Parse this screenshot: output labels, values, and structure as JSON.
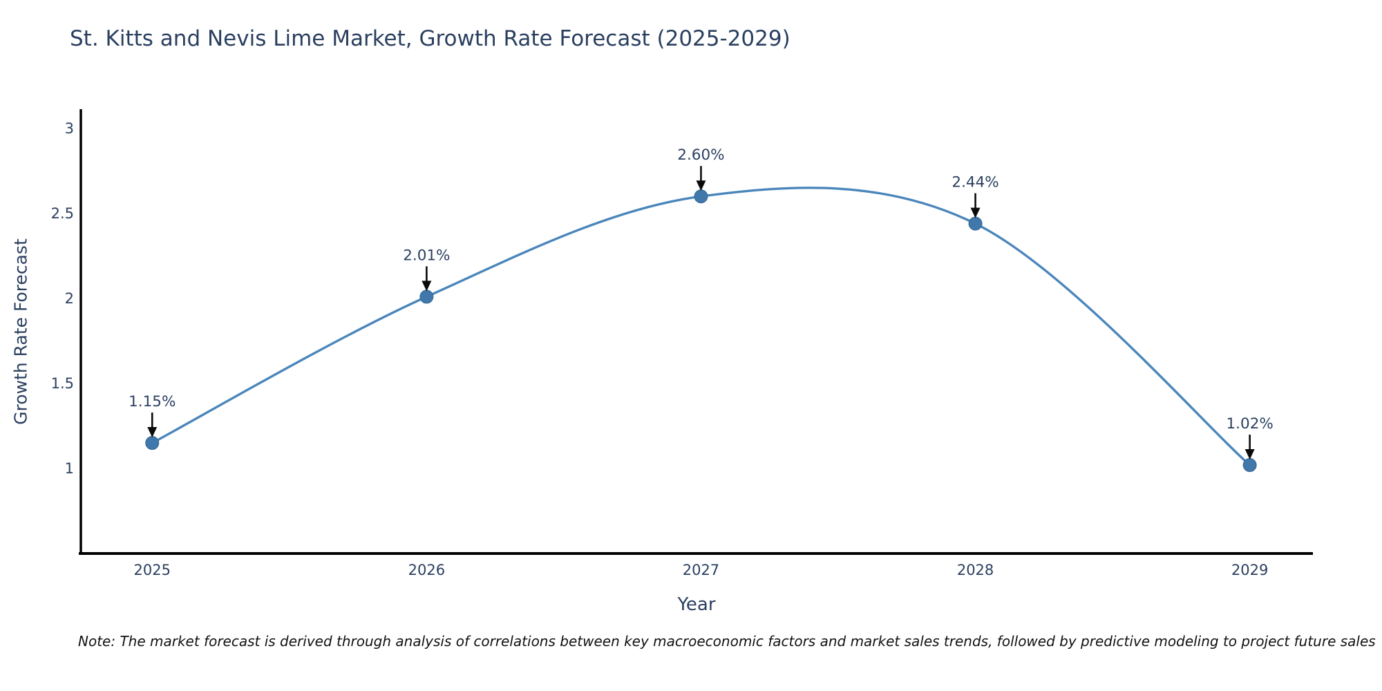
{
  "chart_data": {
    "type": "line",
    "title": "St. Kitts and Nevis Lime Market, Growth Rate Forecast (2025-2029)",
    "xlabel": "Year",
    "ylabel": "Growth Rate Forecast",
    "x": [
      2025,
      2026,
      2027,
      2028,
      2029
    ],
    "categories": [
      "2025",
      "2026",
      "2027",
      "2028",
      "2029"
    ],
    "values": [
      1.15,
      2.01,
      2.6,
      2.44,
      1.02
    ],
    "point_labels": [
      "1.15%",
      "2.01%",
      "2.60%",
      "2.44%",
      "1.02%"
    ],
    "yticks": [
      1,
      1.5,
      2,
      2.5,
      3
    ],
    "ytick_labels": [
      "1",
      "1.5",
      "2",
      "2.5",
      "3"
    ],
    "xlim": [
      2024.74,
      2029.23
    ],
    "ylim": [
      0.5,
      3.113
    ],
    "grid": false,
    "legend": "none",
    "line_style": "smooth-spline",
    "note": "Note: The market forecast is derived through analysis of correlations between key macroeconomic factors and market sales trends, followed by predictive modeling to project future sales",
    "colors": {
      "line": "#4a86bb",
      "marker_fill": "#4178ac",
      "marker_edge": "#35668f",
      "axis": "#000000",
      "text": "#2a3f5f",
      "arrow": "#0a0a0a",
      "background": "#ffffff"
    }
  }
}
